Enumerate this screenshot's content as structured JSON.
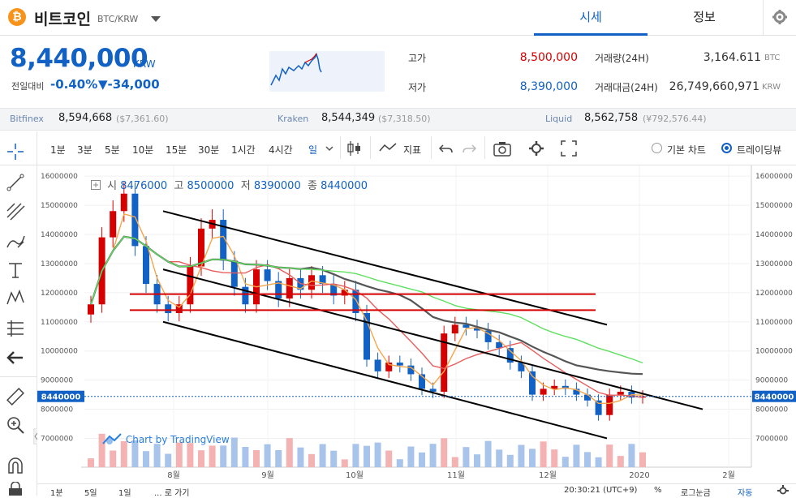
{
  "header": {
    "coin_name": "비트코인",
    "pair": "BTC/KRW",
    "tab_quote": "시세",
    "tab_info": "정보"
  },
  "ticker": {
    "price": "8,440,000",
    "currency": "KRW",
    "change_label": "전일대비",
    "change_pct": "-0.40%",
    "change_amt": "▼-34,000",
    "high_label": "고가",
    "high": "8,500,000",
    "low_label": "저가",
    "low": "8,390,000",
    "vol_label": "거래량(24H)",
    "vol": "3,164.611",
    "vol_unit": "BTC",
    "value_label": "거래대금(24H)",
    "value": "26,749,660,971",
    "value_unit": "KRW"
  },
  "exchanges": [
    {
      "name": "Bitfinex",
      "price": "8,594,668",
      "usd": "($7,361.60)"
    },
    {
      "name": "Kraken",
      "price": "8,544,349",
      "usd": "($7,318.50)"
    },
    {
      "name": "Liquid",
      "price": "8,562,758",
      "usd": "(¥792,576.44)"
    }
  ],
  "toolbar": {
    "timeframes": [
      "1분",
      "3분",
      "5분",
      "10분",
      "15분",
      "30분",
      "1시간",
      "4시간",
      "일"
    ],
    "selected": "일",
    "indicators": "지표",
    "basic_chart": "기본 차트",
    "tradingview": "트레이딩뷰"
  },
  "ohlc": {
    "open_label": "시",
    "open": "8476000",
    "high_label": "고",
    "high": "8500000",
    "low_label": "저",
    "low": "8390000",
    "close_label": "종",
    "close": "8440000"
  },
  "watermark": "Chart by TradingView",
  "footer": {
    "ranges": [
      "1분",
      "5일",
      "1일",
      "... 로 가기"
    ],
    "time": "20:30:21 (UTC+9)",
    "percent": "%",
    "log": "로그눈금",
    "auto": "자동"
  },
  "colors": {
    "accent": "#1261c4",
    "up": "#d60000",
    "high_value": "#d60000",
    "low_value": "#1261c4"
  },
  "chart_data": {
    "type": "candlestick",
    "ylim": [
      6400000,
      16200000
    ],
    "y_ticks": [
      "7000000",
      "8000000",
      "9000000",
      "10000000",
      "11000000",
      "12000000",
      "13000000",
      "14000000",
      "15000000",
      "16000000"
    ],
    "x_ticks": [
      "8월",
      "9월",
      "10월",
      "11월",
      "12월",
      "2020",
      "2월"
    ],
    "last_price_label": "8440000",
    "close": [
      11600000,
      13900000,
      14800000,
      15400000,
      13600000,
      12300000,
      11600000,
      11300000,
      11600000,
      12900000,
      14200000,
      14500000,
      13100000,
      12200000,
      11600000,
      12800000,
      12400000,
      11800000,
      12500000,
      12100000,
      12600000,
      12300000,
      11900000,
      12100000,
      11300000,
      9700000,
      9300000,
      9600000,
      9500000,
      9200000,
      8700000,
      8600000,
      10600000,
      10900000,
      10800000,
      10700000,
      10300000,
      10100000,
      9600000,
      9300000,
      8500000,
      8700000,
      8800000,
      8700000,
      8500000,
      8300000,
      7800000,
      8500000,
      8600000,
      8400000,
      8440000
    ]
  }
}
